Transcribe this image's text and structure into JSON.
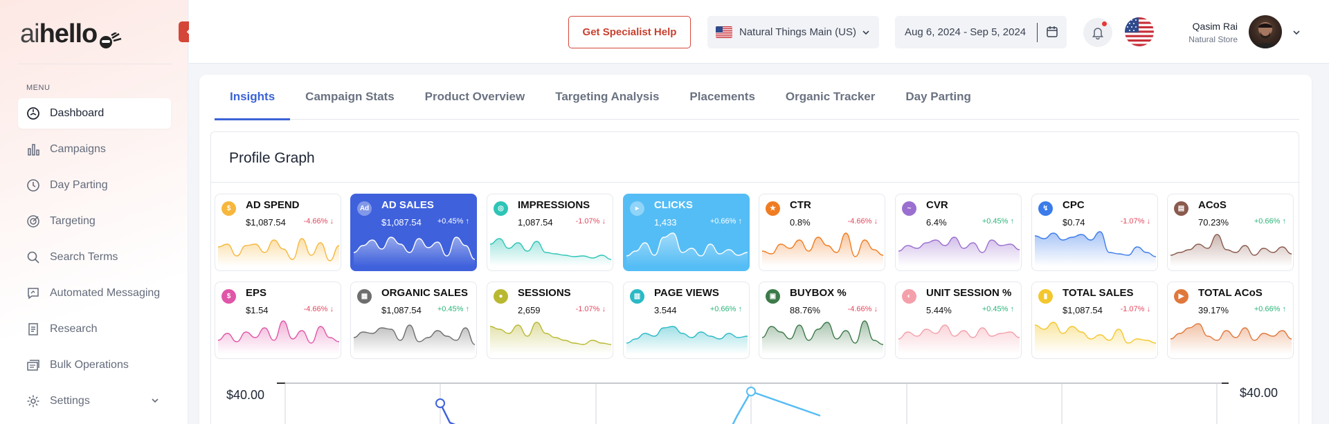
{
  "sidebar": {
    "logo": {
      "prefix": "ai",
      "name": "hello"
    },
    "menu_label": "MENU",
    "items": [
      {
        "label": "Dashboard",
        "icon": "dashboard-icon",
        "active": true
      },
      {
        "label": "Campaigns",
        "icon": "bar-chart-icon"
      },
      {
        "label": "Day Parting",
        "icon": "clock-icon"
      },
      {
        "label": "Targeting",
        "icon": "target-icon"
      },
      {
        "label": "Search Terms",
        "icon": "search-icon"
      },
      {
        "label": "Automated Messaging",
        "icon": "message-icon"
      },
      {
        "label": "Research",
        "icon": "document-icon"
      },
      {
        "label": "Bulk Operations",
        "icon": "bulk-icon"
      },
      {
        "label": "Settings",
        "icon": "gear-icon"
      }
    ]
  },
  "header": {
    "help_label": "Get Specialist Help",
    "store": "Natural Things Main (US)",
    "date_range": "Aug 6, 2024 - Sep 5, 2024",
    "user_name": "Qasim Rai",
    "user_store": "Natural Store"
  },
  "tabs": [
    "Insights",
    "Campaign Stats",
    "Product Overview",
    "Targeting Analysis",
    "Placements",
    "Organic Tracker",
    "Day Parting"
  ],
  "active_tab": "Insights",
  "profile_graph": {
    "title": "Profile Graph",
    "metrics": [
      {
        "label": "AD SPEND",
        "value": "$1,087.54",
        "change": "-4.66%",
        "dir": "down",
        "color": "#f6b73c",
        "highlight": ""
      },
      {
        "label": "AD SALES",
        "value": "$1,087.54",
        "change": "+0.45%",
        "dir": "up",
        "color": "#ffffff",
        "highlight": "blue"
      },
      {
        "label": "IMPRESSIONS",
        "value": "1,087.54",
        "change": "-1.07%",
        "dir": "down",
        "color": "#2ec4b6",
        "highlight": ""
      },
      {
        "label": "CLICKS",
        "value": "1,433",
        "change": "+0.66%",
        "dir": "up",
        "color": "#ffffff",
        "highlight": "sky"
      },
      {
        "label": "CTR",
        "value": "0.8%",
        "change": "-4.66%",
        "dir": "down",
        "color": "#f07c22",
        "highlight": ""
      },
      {
        "label": "CVR",
        "value": "6.4%",
        "change": "+0.45%",
        "dir": "up",
        "color": "#9b6fcf",
        "highlight": ""
      },
      {
        "label": "CPC",
        "value": "$0.74",
        "change": "-1.07%",
        "dir": "down",
        "color": "#3b7bea",
        "highlight": ""
      },
      {
        "label": "ACoS",
        "value": "70.23%",
        "change": "+0.66%",
        "dir": "up",
        "color": "#8a5a4e",
        "highlight": ""
      },
      {
        "label": "EPS",
        "value": "$1.54",
        "change": "-4.66%",
        "dir": "down",
        "color": "#e056a8",
        "highlight": ""
      },
      {
        "label": "ORGANIC SALES",
        "value": "$1,087.54",
        "change": "+0.45%",
        "dir": "up",
        "color": "#6e6e6e",
        "highlight": ""
      },
      {
        "label": "SESSIONS",
        "value": "2,659",
        "change": "-1.07%",
        "dir": "down",
        "color": "#b9b832",
        "highlight": ""
      },
      {
        "label": "PAGE VIEWS",
        "value": "3.544",
        "change": "+0.66%",
        "dir": "up",
        "color": "#2bb9c6",
        "highlight": ""
      },
      {
        "label": "BUYBOX %",
        "value": "88.76%",
        "change": "-4.66%",
        "dir": "down",
        "color": "#3d7a4a",
        "highlight": ""
      },
      {
        "label": "UNIT SESSION %",
        "value": "5.44%",
        "change": "+0.45%",
        "dir": "up",
        "color": "#f4a0aa",
        "highlight": ""
      },
      {
        "label": "TOTAL SALES",
        "value": "$1,087.54",
        "change": "-1.07%",
        "dir": "down",
        "color": "#f3c72d",
        "highlight": ""
      },
      {
        "label": "TOTAL ACoS",
        "value": "39.17%",
        "change": "+0.66%",
        "dir": "up",
        "color": "#e0783c",
        "highlight": ""
      }
    ],
    "axis_left_label": "$40.00",
    "axis_right_label": "$40.00"
  }
}
